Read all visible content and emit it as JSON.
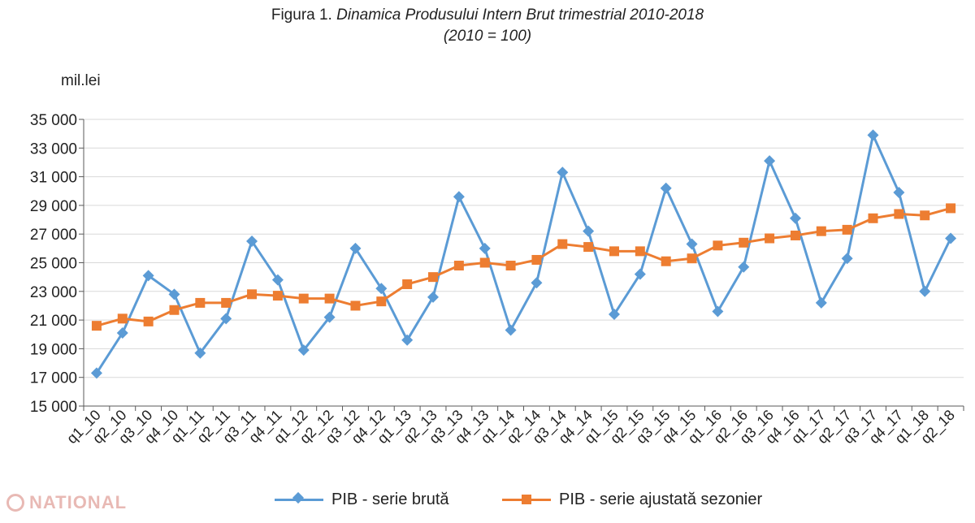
{
  "title": {
    "line1_lead": "Figura 1.",
    "line1_rest": "Dinamica Produsului Intern Brut trimestrial 2010-2018",
    "line2": "(2010 = 100)"
  },
  "watermark": {
    "text": "NATIONAL"
  },
  "colors": {
    "series_raw": "#5B9BD5",
    "series_adjusted": "#ED7D31",
    "grid": "#d9d9d9",
    "axis": "#595959"
  },
  "chart_data": {
    "type": "line",
    "title": "Figura 1. Dinamica Produsului Intern Brut trimestrial 2010-2018 (2010 = 100)",
    "ylabel": "mil.lei",
    "xlabel": "",
    "ylim": [
      15000,
      35000
    ],
    "yticks": [
      15000,
      17000,
      19000,
      21000,
      23000,
      25000,
      27000,
      29000,
      31000,
      33000,
      35000
    ],
    "ytick_labels": [
      "15 000",
      "17 000",
      "19 000",
      "21 000",
      "23 000",
      "25 000",
      "27 000",
      "29 000",
      "31 000",
      "33 000",
      "35 000"
    ],
    "grid": true,
    "legend": "bottom",
    "categories": [
      "q1_10",
      "q2_10",
      "q3_10",
      "q4_10",
      "q1_11",
      "q2_11",
      "q3_11",
      "q4_11",
      "q1_12",
      "q2_12",
      "q3_12",
      "q4_12",
      "q1_13",
      "q2_13",
      "q3_13",
      "q4_13",
      "q1_14",
      "q2_14",
      "q3_14",
      "q4_14",
      "q1_15",
      "q2_15",
      "q3_15",
      "q4_15",
      "q1_16",
      "q2_16",
      "q3_16",
      "q4_16",
      "q1_17",
      "q2_17",
      "q3_17",
      "q4_17",
      "q1_18",
      "q2_18"
    ],
    "series": [
      {
        "name": "PIB - serie brută",
        "marker": "diamond",
        "values": [
          17300,
          20100,
          24100,
          22800,
          18700,
          21100,
          26500,
          23800,
          18900,
          21200,
          26000,
          23200,
          19600,
          22600,
          29600,
          26000,
          20300,
          23600,
          31300,
          27200,
          21400,
          24200,
          30200,
          26300,
          21600,
          24700,
          32100,
          28100,
          22200,
          25300,
          33900,
          29900,
          23000,
          26700
        ]
      },
      {
        "name": "PIB - serie ajustată sezonier",
        "marker": "square",
        "values": [
          20600,
          21100,
          20900,
          21700,
          22200,
          22200,
          22800,
          22700,
          22500,
          22500,
          22000,
          22300,
          23500,
          24000,
          24800,
          25000,
          24800,
          25200,
          26300,
          26100,
          25800,
          25800,
          25100,
          25300,
          26200,
          26400,
          26700,
          26900,
          27200,
          27300,
          28100,
          28400,
          28300,
          28800
        ]
      }
    ]
  }
}
